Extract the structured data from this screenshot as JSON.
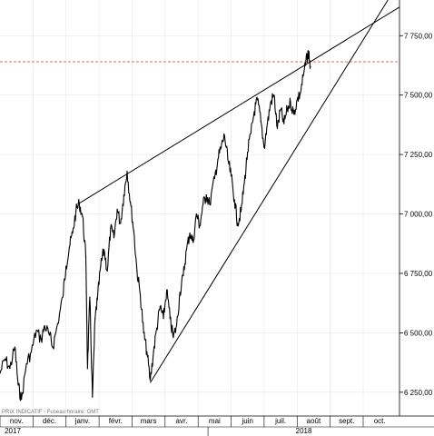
{
  "chart_data": {
    "type": "line",
    "title": "",
    "xlabel": "",
    "ylabel": "",
    "footer_text": "PRIX INDICATIF - Fuseau horaire: GMT",
    "ylim": [
      6150,
      7900
    ],
    "y_ticks": [
      {
        "value": 6250,
        "label": "6 250,00"
      },
      {
        "value": 6500,
        "label": "6 500,00"
      },
      {
        "value": 6750,
        "label": "6 750,00"
      },
      {
        "value": 7000,
        "label": "7 000,00"
      },
      {
        "value": 7250,
        "label": "7 250,00"
      },
      {
        "value": 7500,
        "label": "7 500,00"
      },
      {
        "value": 7750,
        "label": "7 750,00"
      }
    ],
    "x_domain_months": [
      0,
      12.1
    ],
    "months": [
      {
        "label": "nov.",
        "start": 0
      },
      {
        "label": "déc.",
        "start": 1
      },
      {
        "label": "janv.",
        "start": 2
      },
      {
        "label": "févr.",
        "start": 3
      },
      {
        "label": "mars",
        "start": 4
      },
      {
        "label": "avr.",
        "start": 5
      },
      {
        "label": "mai",
        "start": 6
      },
      {
        "label": "juin",
        "start": 7
      },
      {
        "label": "juil.",
        "start": 8
      },
      {
        "label": "août",
        "start": 9
      },
      {
        "label": "sept.",
        "start": 10
      },
      {
        "label": "oct.",
        "start": 11
      }
    ],
    "years": [
      {
        "label": "2017",
        "at": 0
      },
      {
        "label": "2018",
        "at": 6.3
      }
    ],
    "reference_level": {
      "value": 7640,
      "color": "#e05050"
    },
    "trendlines": [
      {
        "name": "upper",
        "color": "#000000",
        "points": [
          [
            2.4,
            7045
          ],
          [
            12.1,
            7870
          ]
        ]
      },
      {
        "name": "lower",
        "color": "#000000",
        "points": [
          [
            4.55,
            6290
          ],
          [
            11.75,
            7900
          ]
        ]
      }
    ],
    "series": [
      {
        "color": "#000000",
        "points": [
          [
            0.0,
            6330
          ],
          [
            0.15,
            6390
          ],
          [
            0.3,
            6350
          ],
          [
            0.45,
            6440
          ],
          [
            0.55,
            6280
          ],
          [
            0.65,
            6220
          ],
          [
            0.8,
            6370
          ],
          [
            0.95,
            6420
          ],
          [
            1.1,
            6510
          ],
          [
            1.25,
            6470
          ],
          [
            1.35,
            6530
          ],
          [
            1.5,
            6490
          ],
          [
            1.6,
            6440
          ],
          [
            1.75,
            6540
          ],
          [
            1.9,
            6650
          ],
          [
            2.0,
            6780
          ],
          [
            2.1,
            6860
          ],
          [
            2.2,
            6920
          ],
          [
            2.3,
            7010
          ],
          [
            2.4,
            7045
          ],
          [
            2.5,
            6990
          ],
          [
            2.6,
            6820
          ],
          [
            2.65,
            6350
          ],
          [
            2.72,
            6650
          ],
          [
            2.8,
            6230
          ],
          [
            2.88,
            6560
          ],
          [
            2.95,
            6640
          ],
          [
            3.05,
            6780
          ],
          [
            3.15,
            6850
          ],
          [
            3.25,
            6760
          ],
          [
            3.35,
            6940
          ],
          [
            3.45,
            6900
          ],
          [
            3.55,
            7020
          ],
          [
            3.65,
            6960
          ],
          [
            3.75,
            7080
          ],
          [
            3.85,
            7180
          ],
          [
            3.95,
            7050
          ],
          [
            4.05,
            6930
          ],
          [
            4.15,
            6760
          ],
          [
            4.25,
            6660
          ],
          [
            4.35,
            6500
          ],
          [
            4.45,
            6420
          ],
          [
            4.55,
            6300
          ],
          [
            4.65,
            6420
          ],
          [
            4.75,
            6520
          ],
          [
            4.85,
            6610
          ],
          [
            4.95,
            6560
          ],
          [
            5.05,
            6680
          ],
          [
            5.15,
            6560
          ],
          [
            5.25,
            6480
          ],
          [
            5.35,
            6530
          ],
          [
            5.45,
            6670
          ],
          [
            5.55,
            6740
          ],
          [
            5.65,
            6850
          ],
          [
            5.75,
            6920
          ],
          [
            5.85,
            6880
          ],
          [
            5.95,
            7000
          ],
          [
            6.05,
            6950
          ],
          [
            6.15,
            7040
          ],
          [
            6.25,
            7080
          ],
          [
            6.35,
            7040
          ],
          [
            6.5,
            7150
          ],
          [
            6.6,
            7230
          ],
          [
            6.7,
            7280
          ],
          [
            6.8,
            7330
          ],
          [
            6.9,
            7230
          ],
          [
            7.0,
            7160
          ],
          [
            7.1,
            7060
          ],
          [
            7.2,
            6960
          ],
          [
            7.3,
            7010
          ],
          [
            7.4,
            7130
          ],
          [
            7.5,
            7260
          ],
          [
            7.6,
            7340
          ],
          [
            7.7,
            7430
          ],
          [
            7.8,
            7480
          ],
          [
            7.9,
            7390
          ],
          [
            8.0,
            7280
          ],
          [
            8.1,
            7380
          ],
          [
            8.2,
            7470
          ],
          [
            8.3,
            7500
          ],
          [
            8.4,
            7360
          ],
          [
            8.5,
            7440
          ],
          [
            8.6,
            7380
          ],
          [
            8.7,
            7440
          ],
          [
            8.8,
            7470
          ],
          [
            8.9,
            7420
          ],
          [
            9.0,
            7480
          ],
          [
            9.1,
            7510
          ],
          [
            9.2,
            7590
          ],
          [
            9.3,
            7660
          ],
          [
            9.35,
            7680
          ],
          [
            9.4,
            7620
          ]
        ]
      }
    ],
    "grid": true,
    "legend": "none"
  }
}
